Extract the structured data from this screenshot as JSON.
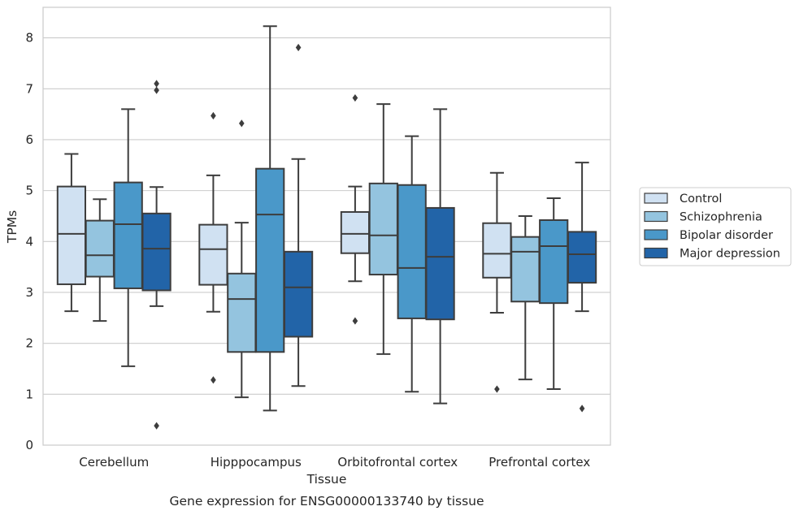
{
  "chart_data": {
    "type": "box",
    "title": "",
    "caption": "Gene expression for ENSG00000133740 by tissue",
    "xlabel": "Tissue",
    "ylabel": "TPMs",
    "ylim": [
      0,
      8.6
    ],
    "yticks": [
      0,
      1,
      2,
      3,
      4,
      5,
      6,
      7,
      8
    ],
    "grid": "horizontal",
    "legend_position": "right",
    "categories": [
      "Cerebellum",
      "Hipppocampus",
      "Orbitofrontal cortex",
      "Prefrontal cortex"
    ],
    "series": [
      {
        "name": "Control",
        "color": "#d0e1f2",
        "boxes": [
          {
            "whislo": 2.63,
            "q1": 3.16,
            "med": 4.15,
            "q3": 5.08,
            "whishi": 5.72,
            "fliers": []
          },
          {
            "whislo": 2.62,
            "q1": 3.15,
            "med": 3.85,
            "q3": 4.33,
            "whishi": 5.3,
            "fliers": [
              6.47,
              1.28
            ]
          },
          {
            "whislo": 3.22,
            "q1": 3.77,
            "med": 4.15,
            "q3": 4.58,
            "whishi": 5.08,
            "fliers": [
              6.82,
              2.44
            ]
          },
          {
            "whislo": 2.6,
            "q1": 3.29,
            "med": 3.76,
            "q3": 4.36,
            "whishi": 5.35,
            "fliers": [
              1.1
            ]
          }
        ]
      },
      {
        "name": "Schizophrenia",
        "color": "#94c4df",
        "boxes": [
          {
            "whislo": 2.44,
            "q1": 3.31,
            "med": 3.73,
            "q3": 4.41,
            "whishi": 4.83,
            "fliers": []
          },
          {
            "whislo": 0.94,
            "q1": 1.83,
            "med": 2.87,
            "q3": 3.37,
            "whishi": 4.37,
            "fliers": [
              6.32
            ]
          },
          {
            "whislo": 1.79,
            "q1": 3.35,
            "med": 4.12,
            "q3": 5.14,
            "whishi": 6.7,
            "fliers": []
          },
          {
            "whislo": 1.29,
            "q1": 2.82,
            "med": 3.8,
            "q3": 4.09,
            "whishi": 4.5,
            "fliers": []
          }
        ]
      },
      {
        "name": "Bipolar disorder",
        "color": "#4a98c9",
        "boxes": [
          {
            "whislo": 1.55,
            "q1": 3.08,
            "med": 4.34,
            "q3": 5.16,
            "whishi": 6.6,
            "fliers": []
          },
          {
            "whislo": 0.68,
            "q1": 1.83,
            "med": 4.53,
            "q3": 5.43,
            "whishi": 8.23,
            "fliers": []
          },
          {
            "whislo": 1.05,
            "q1": 2.49,
            "med": 3.48,
            "q3": 5.11,
            "whishi": 6.07,
            "fliers": []
          },
          {
            "whislo": 1.1,
            "q1": 2.79,
            "med": 3.91,
            "q3": 4.42,
            "whishi": 4.85,
            "fliers": []
          }
        ]
      },
      {
        "name": "Major depression",
        "color": "#2264a8",
        "boxes": [
          {
            "whislo": 2.73,
            "q1": 3.04,
            "med": 3.86,
            "q3": 4.55,
            "whishi": 5.07,
            "fliers": [
              7.1,
              6.97,
              0.38
            ]
          },
          {
            "whislo": 1.16,
            "q1": 2.13,
            "med": 3.1,
            "q3": 3.8,
            "whishi": 5.62,
            "fliers": [
              7.81
            ]
          },
          {
            "whislo": 0.82,
            "q1": 2.47,
            "med": 3.7,
            "q3": 4.66,
            "whishi": 6.6,
            "fliers": []
          },
          {
            "whislo": 2.63,
            "q1": 3.19,
            "med": 3.75,
            "q3": 4.19,
            "whishi": 5.55,
            "fliers": [
              0.72
            ]
          }
        ]
      }
    ]
  }
}
